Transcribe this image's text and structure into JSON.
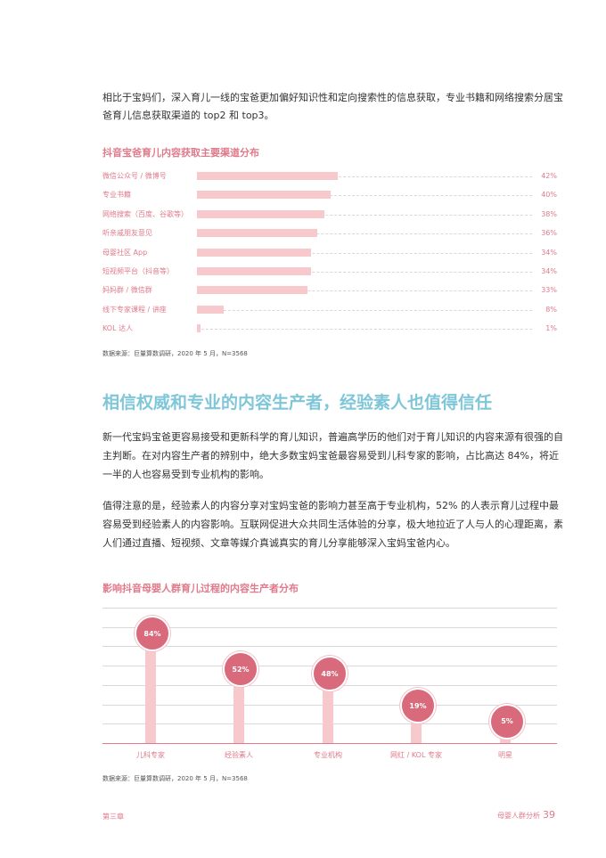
{
  "intro": "相比于宝妈们，深入育儿一线的宝爸更加偏好知识性和定向搜索性的信息获取，专业书籍和网络搜索分居宝爸育儿信息获取渠道的 top2 和 top3。",
  "chart1": {
    "title": "抖音宝爸育儿内容获取主要渠道分布",
    "source": "数据来源：巨量算数调研，2020 年 5 月，N=3568"
  },
  "section_heading": "相信权威和专业的内容生产者，经验素人也值得信任",
  "paragraphs": [
    "新一代宝妈宝爸更容易接受和更新科学的育儿知识，普遍高学历的他们对于育儿知识的内容来源有很强的自主判断。在对内容生产者的辨别中，绝大多数宝妈宝爸最容易受到儿科专家的影响，占比高达 84%，将近一半的人也容易受到专业机构的影响。",
    "值得注意的是，经验素人的内容分享对宝妈宝爸的影响力甚至高于专业机构，52% 的人表示育儿过程中最容易受到经验素人的内容影响。互联网促进大众共同生活体验的分享，极大地拉近了人与人的心理距离，素人们通过直播、短视频、文章等媒介真诚真实的育儿分享能够深入宝妈宝爸内心。"
  ],
  "chart2": {
    "title": "影响抖音母婴人群育儿过程的内容生产者分布",
    "source": "数据来源：巨量算数调研，2020 年 5 月，N=3568"
  },
  "footer": {
    "chapter": "第三章",
    "section": "母婴人群分析",
    "page": "39"
  },
  "colors": {
    "accent": "#e07a8a",
    "bar": "#f7c9cd",
    "bubble": "#d96a7c",
    "heading": "#7ec6d8"
  },
  "chart_data": [
    {
      "type": "bar",
      "orientation": "horizontal",
      "title": "抖音宝爸育儿内容获取主要渠道分布",
      "categories": [
        "微信公众号 / 微博号",
        "专业书籍",
        "网络搜索（百度、谷歌等）",
        "听亲戚朋友意见",
        "母婴社区 App",
        "短视频平台（抖音等）",
        "妈妈群 / 微信群",
        "线下专家课程 / 讲座",
        "KOL 达人"
      ],
      "values": [
        42,
        40,
        38,
        36,
        34,
        34,
        33,
        8,
        1
      ],
      "value_labels": [
        "42%",
        "40%",
        "38%",
        "36%",
        "34%",
        "34%",
        "33%",
        "8%",
        "1%"
      ],
      "xlim": [
        0,
        100
      ]
    },
    {
      "type": "bar",
      "orientation": "vertical",
      "title": "影响抖音母婴人群育儿过程的内容生产者分布",
      "categories": [
        "儿科专家",
        "经验素人",
        "专业机构",
        "网红 / KOL 专家",
        "明星"
      ],
      "values": [
        84,
        52,
        48,
        19,
        5
      ],
      "value_labels": [
        "84%",
        "52%",
        "48%",
        "19%",
        "5%"
      ],
      "ylim": [
        0,
        100
      ],
      "grid": true
    }
  ]
}
